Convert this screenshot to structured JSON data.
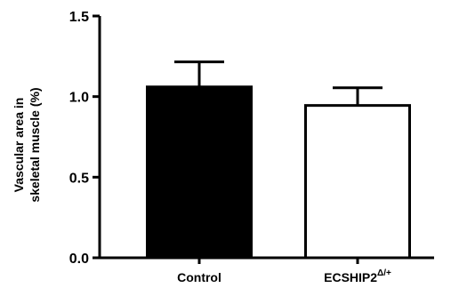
{
  "chart_data": {
    "type": "bar",
    "title": "",
    "xlabel": "",
    "ylabel_lines": [
      "Vascular area in",
      "skeletal muscle (%)"
    ],
    "ylim": [
      0,
      1.5
    ],
    "yticks": [
      0.0,
      0.5,
      1.0,
      1.5
    ],
    "ytick_labels": [
      "0.0",
      "0.5",
      "1.0",
      "1.5"
    ],
    "categories": [
      "Control",
      "ECSHIP2"
    ],
    "category_superscripts": [
      "",
      "Δ/+"
    ],
    "values": [
      1.06,
      0.945
    ],
    "errors": [
      0.155,
      0.11
    ],
    "bar_fills": [
      "#000000",
      "#ffffff"
    ],
    "bar_stroke": "#000000",
    "grid": false,
    "legend": "none"
  }
}
